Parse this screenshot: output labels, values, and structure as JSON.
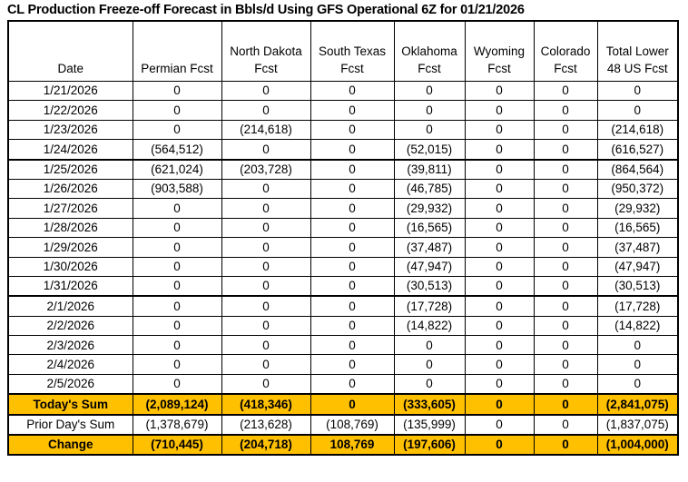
{
  "title": "CL Production Freeze-off Forecast in Bbls/d Using GFS Operational 6Z for 01/21/2026",
  "colors": {
    "highlight": "#FFC000",
    "negative": "#FF0000",
    "border": "#000000"
  },
  "table": {
    "columns": [
      "Date",
      "Permian Fcst",
      "North Dakota Fcst",
      "South Texas Fcst",
      "Oklahoma Fcst",
      "Wyoming Fcst",
      "Colorado Fcst",
      "Total Lower 48 US Fcst"
    ],
    "rows": [
      {
        "date": "1/21/2026",
        "values": [
          "0",
          "0",
          "0",
          "0",
          "0",
          "0",
          "0"
        ],
        "week_end": false
      },
      {
        "date": "1/22/2026",
        "values": [
          "0",
          "0",
          "0",
          "0",
          "0",
          "0",
          "0"
        ],
        "week_end": false
      },
      {
        "date": "1/23/2026",
        "values": [
          "0",
          "(214,618)",
          "0",
          "0",
          "0",
          "0",
          "(214,618)"
        ],
        "week_end": false
      },
      {
        "date": "1/24/2026",
        "values": [
          "(564,512)",
          "0",
          "0",
          "(52,015)",
          "0",
          "0",
          "(616,527)"
        ],
        "week_end": true
      },
      {
        "date": "1/25/2026",
        "values": [
          "(621,024)",
          "(203,728)",
          "0",
          "(39,811)",
          "0",
          "0",
          "(864,564)"
        ],
        "week_end": false
      },
      {
        "date": "1/26/2026",
        "values": [
          "(903,588)",
          "0",
          "0",
          "(46,785)",
          "0",
          "0",
          "(950,372)"
        ],
        "week_end": false
      },
      {
        "date": "1/27/2026",
        "values": [
          "0",
          "0",
          "0",
          "(29,932)",
          "0",
          "0",
          "(29,932)"
        ],
        "week_end": false
      },
      {
        "date": "1/28/2026",
        "values": [
          "0",
          "0",
          "0",
          "(16,565)",
          "0",
          "0",
          "(16,565)"
        ],
        "week_end": false
      },
      {
        "date": "1/29/2026",
        "values": [
          "0",
          "0",
          "0",
          "(37,487)",
          "0",
          "0",
          "(37,487)"
        ],
        "week_end": false
      },
      {
        "date": "1/30/2026",
        "values": [
          "0",
          "0",
          "0",
          "(47,947)",
          "0",
          "0",
          "(47,947)"
        ],
        "week_end": false
      },
      {
        "date": "1/31/2026",
        "values": [
          "0",
          "0",
          "0",
          "(30,513)",
          "0",
          "0",
          "(30,513)"
        ],
        "week_end": true
      },
      {
        "date": "2/1/2026",
        "values": [
          "0",
          "0",
          "0",
          "(17,728)",
          "0",
          "0",
          "(17,728)"
        ],
        "week_end": false
      },
      {
        "date": "2/2/2026",
        "values": [
          "0",
          "0",
          "0",
          "(14,822)",
          "0",
          "0",
          "(14,822)"
        ],
        "week_end": false
      },
      {
        "date": "2/3/2026",
        "values": [
          "0",
          "0",
          "0",
          "0",
          "0",
          "0",
          "0"
        ],
        "week_end": false
      },
      {
        "date": "2/4/2026",
        "values": [
          "0",
          "0",
          "0",
          "0",
          "0",
          "0",
          "0"
        ],
        "week_end": false
      },
      {
        "date": "2/5/2026",
        "values": [
          "0",
          "0",
          "0",
          "0",
          "0",
          "0",
          "0"
        ],
        "week_end": true
      }
    ],
    "summary_rows": [
      {
        "label": "Today's Sum",
        "values": [
          "(2,089,124)",
          "(418,346)",
          "0",
          "(333,605)",
          "0",
          "0",
          "(2,841,075)"
        ],
        "highlight": true
      },
      {
        "label": "Prior Day's Sum",
        "values": [
          "(1,378,679)",
          "(213,628)",
          "(108,769)",
          "(135,999)",
          "0",
          "0",
          "(1,837,075)"
        ],
        "highlight": false
      },
      {
        "label": "Change",
        "values": [
          "(710,445)",
          "(204,718)",
          "108,769",
          "(197,606)",
          "0",
          "0",
          "(1,004,000)"
        ],
        "highlight": true
      }
    ]
  }
}
